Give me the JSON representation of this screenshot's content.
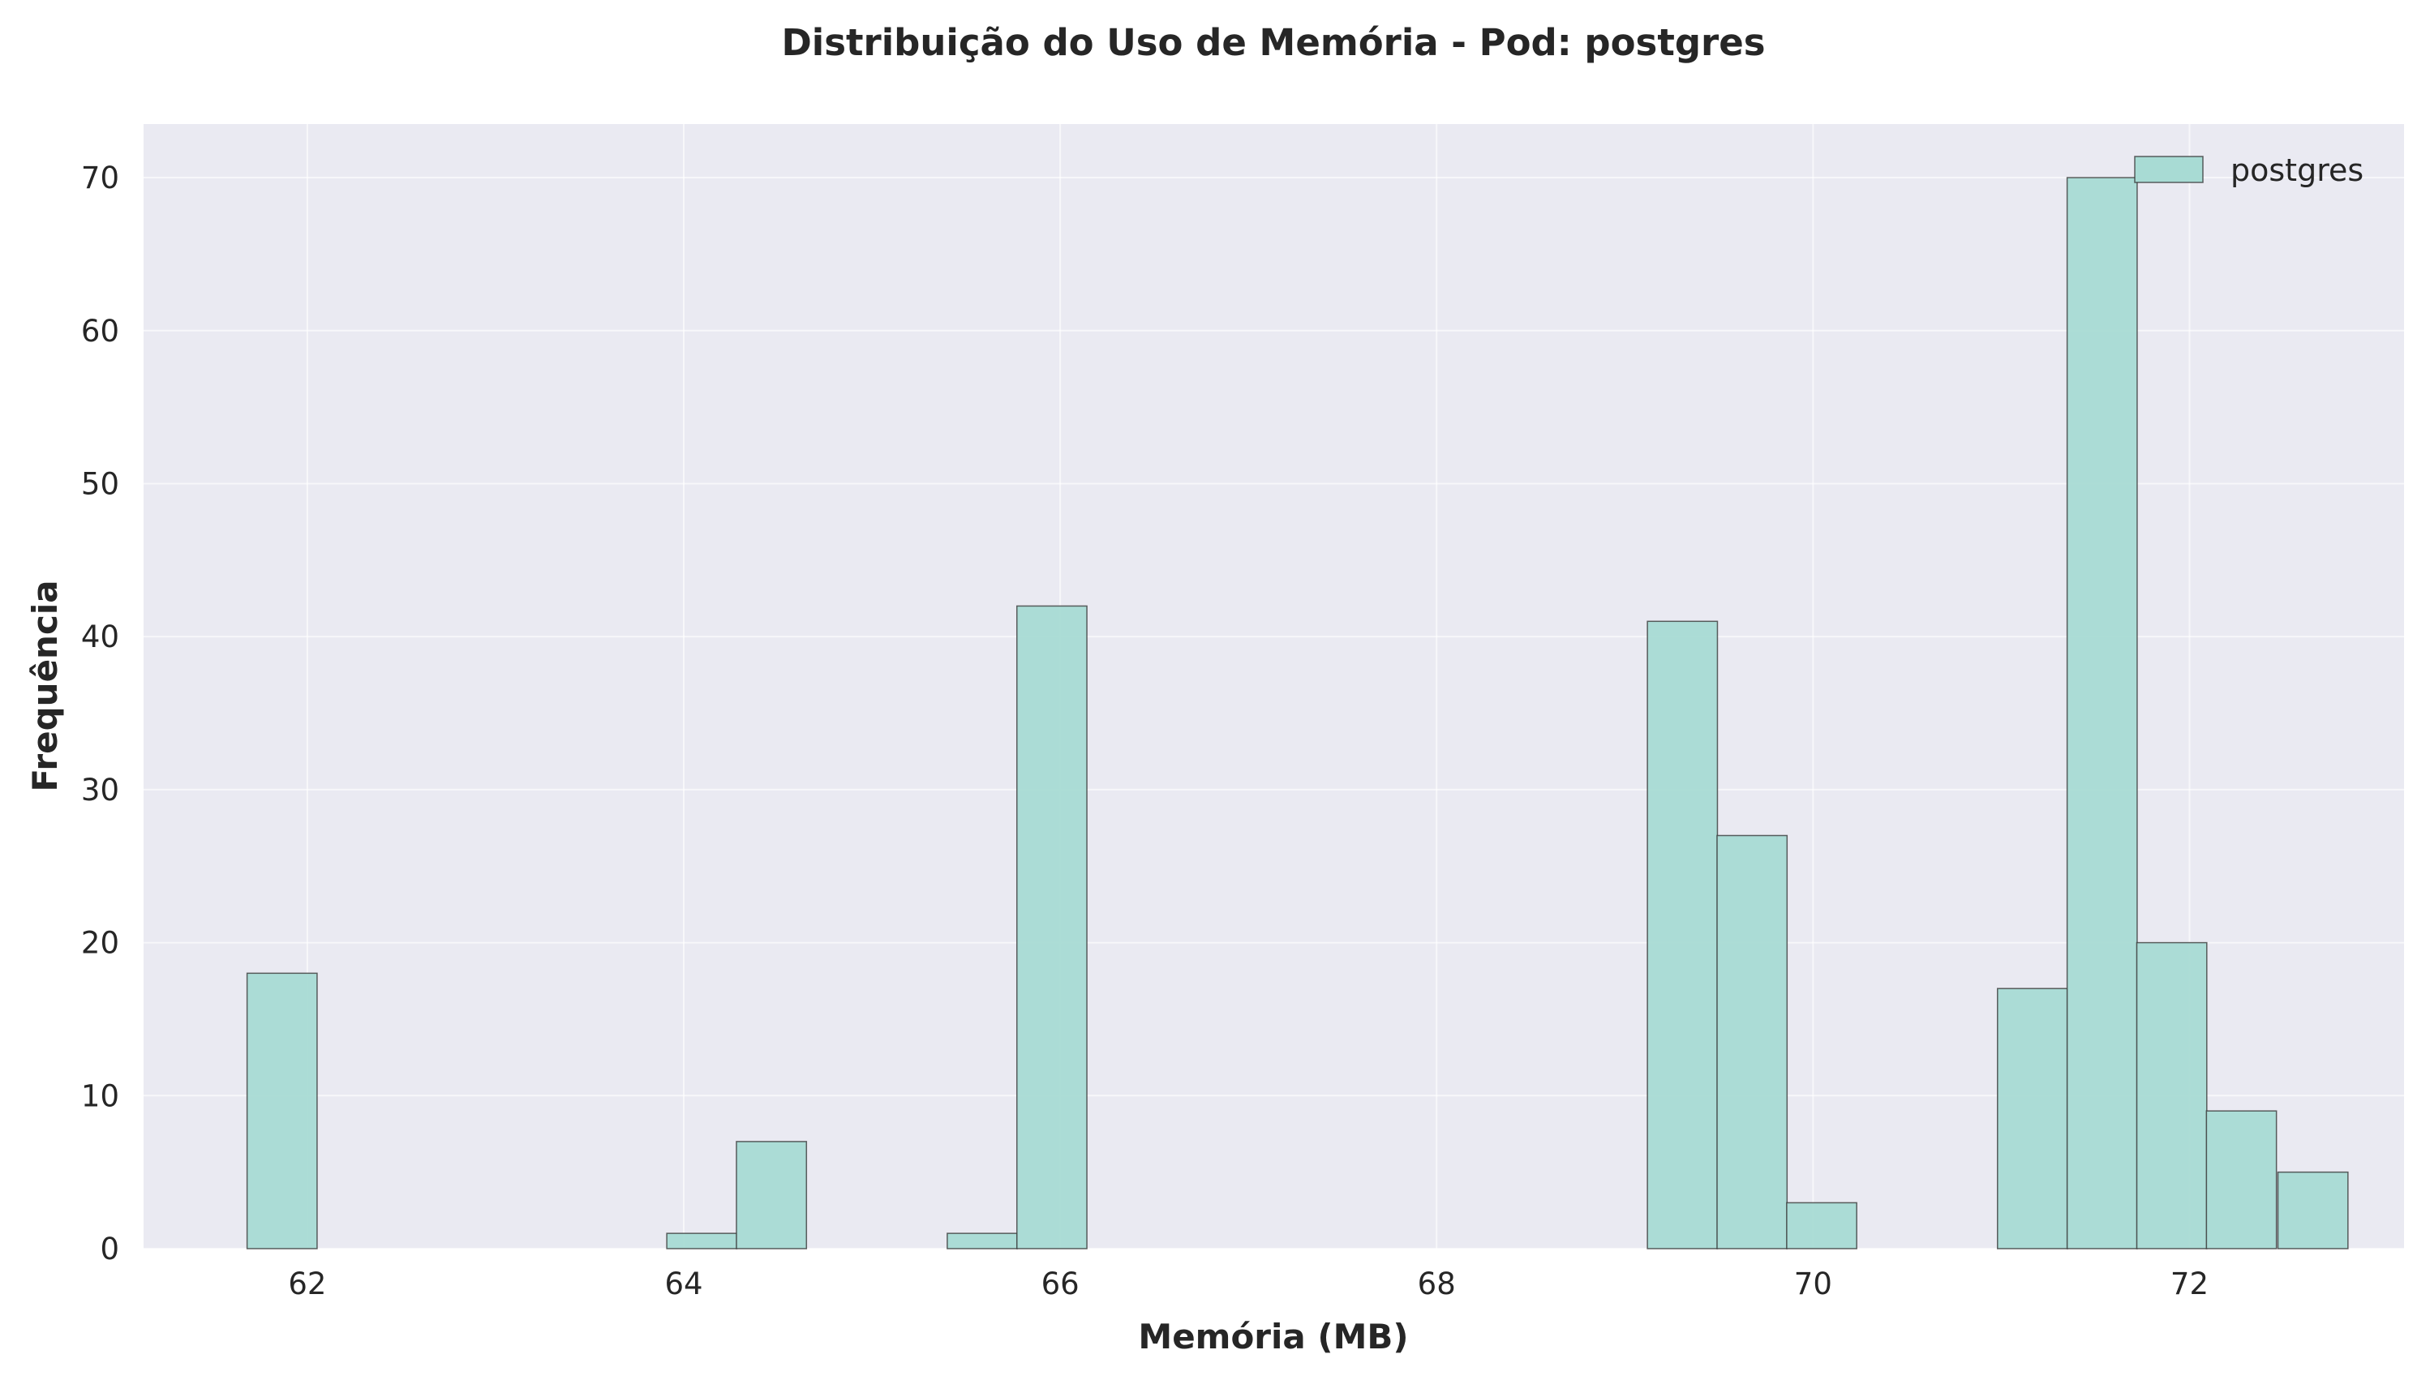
{
  "chart_data": {
    "type": "bar",
    "title": "Distribuição do Uso de Memória - Pod: postgres",
    "xlabel": "Memória (MB)",
    "ylabel": "Frequência",
    "xlim": [
      61.13,
      73.14
    ],
    "ylim": [
      0,
      73.5
    ],
    "x_ticks": [
      62,
      64,
      66,
      68,
      70,
      72
    ],
    "y_ticks": [
      0,
      10,
      20,
      30,
      40,
      50,
      60,
      70
    ],
    "grid": true,
    "legend_position": "top-right",
    "series": [
      {
        "name": "postgres",
        "color": "#a8dbd4",
        "edge_color": "#3a3a3a",
        "bin_width": 0.372,
        "bins": [
          {
            "x0": 61.68,
            "count": 18
          },
          {
            "x0": 63.91,
            "count": 1
          },
          {
            "x0": 64.28,
            "count": 7
          },
          {
            "x0": 65.4,
            "count": 1
          },
          {
            "x0": 65.77,
            "count": 42
          },
          {
            "x0": 69.12,
            "count": 41
          },
          {
            "x0": 69.49,
            "count": 27
          },
          {
            "x0": 69.86,
            "count": 3
          },
          {
            "x0": 70.98,
            "count": 17
          },
          {
            "x0": 71.35,
            "count": 70
          },
          {
            "x0": 71.72,
            "count": 20
          },
          {
            "x0": 72.09,
            "count": 9
          },
          {
            "x0": 72.47,
            "count": 5
          }
        ]
      }
    ]
  },
  "colors": {
    "plot_background": "#eaeaf2",
    "grid": "#ffffff"
  }
}
